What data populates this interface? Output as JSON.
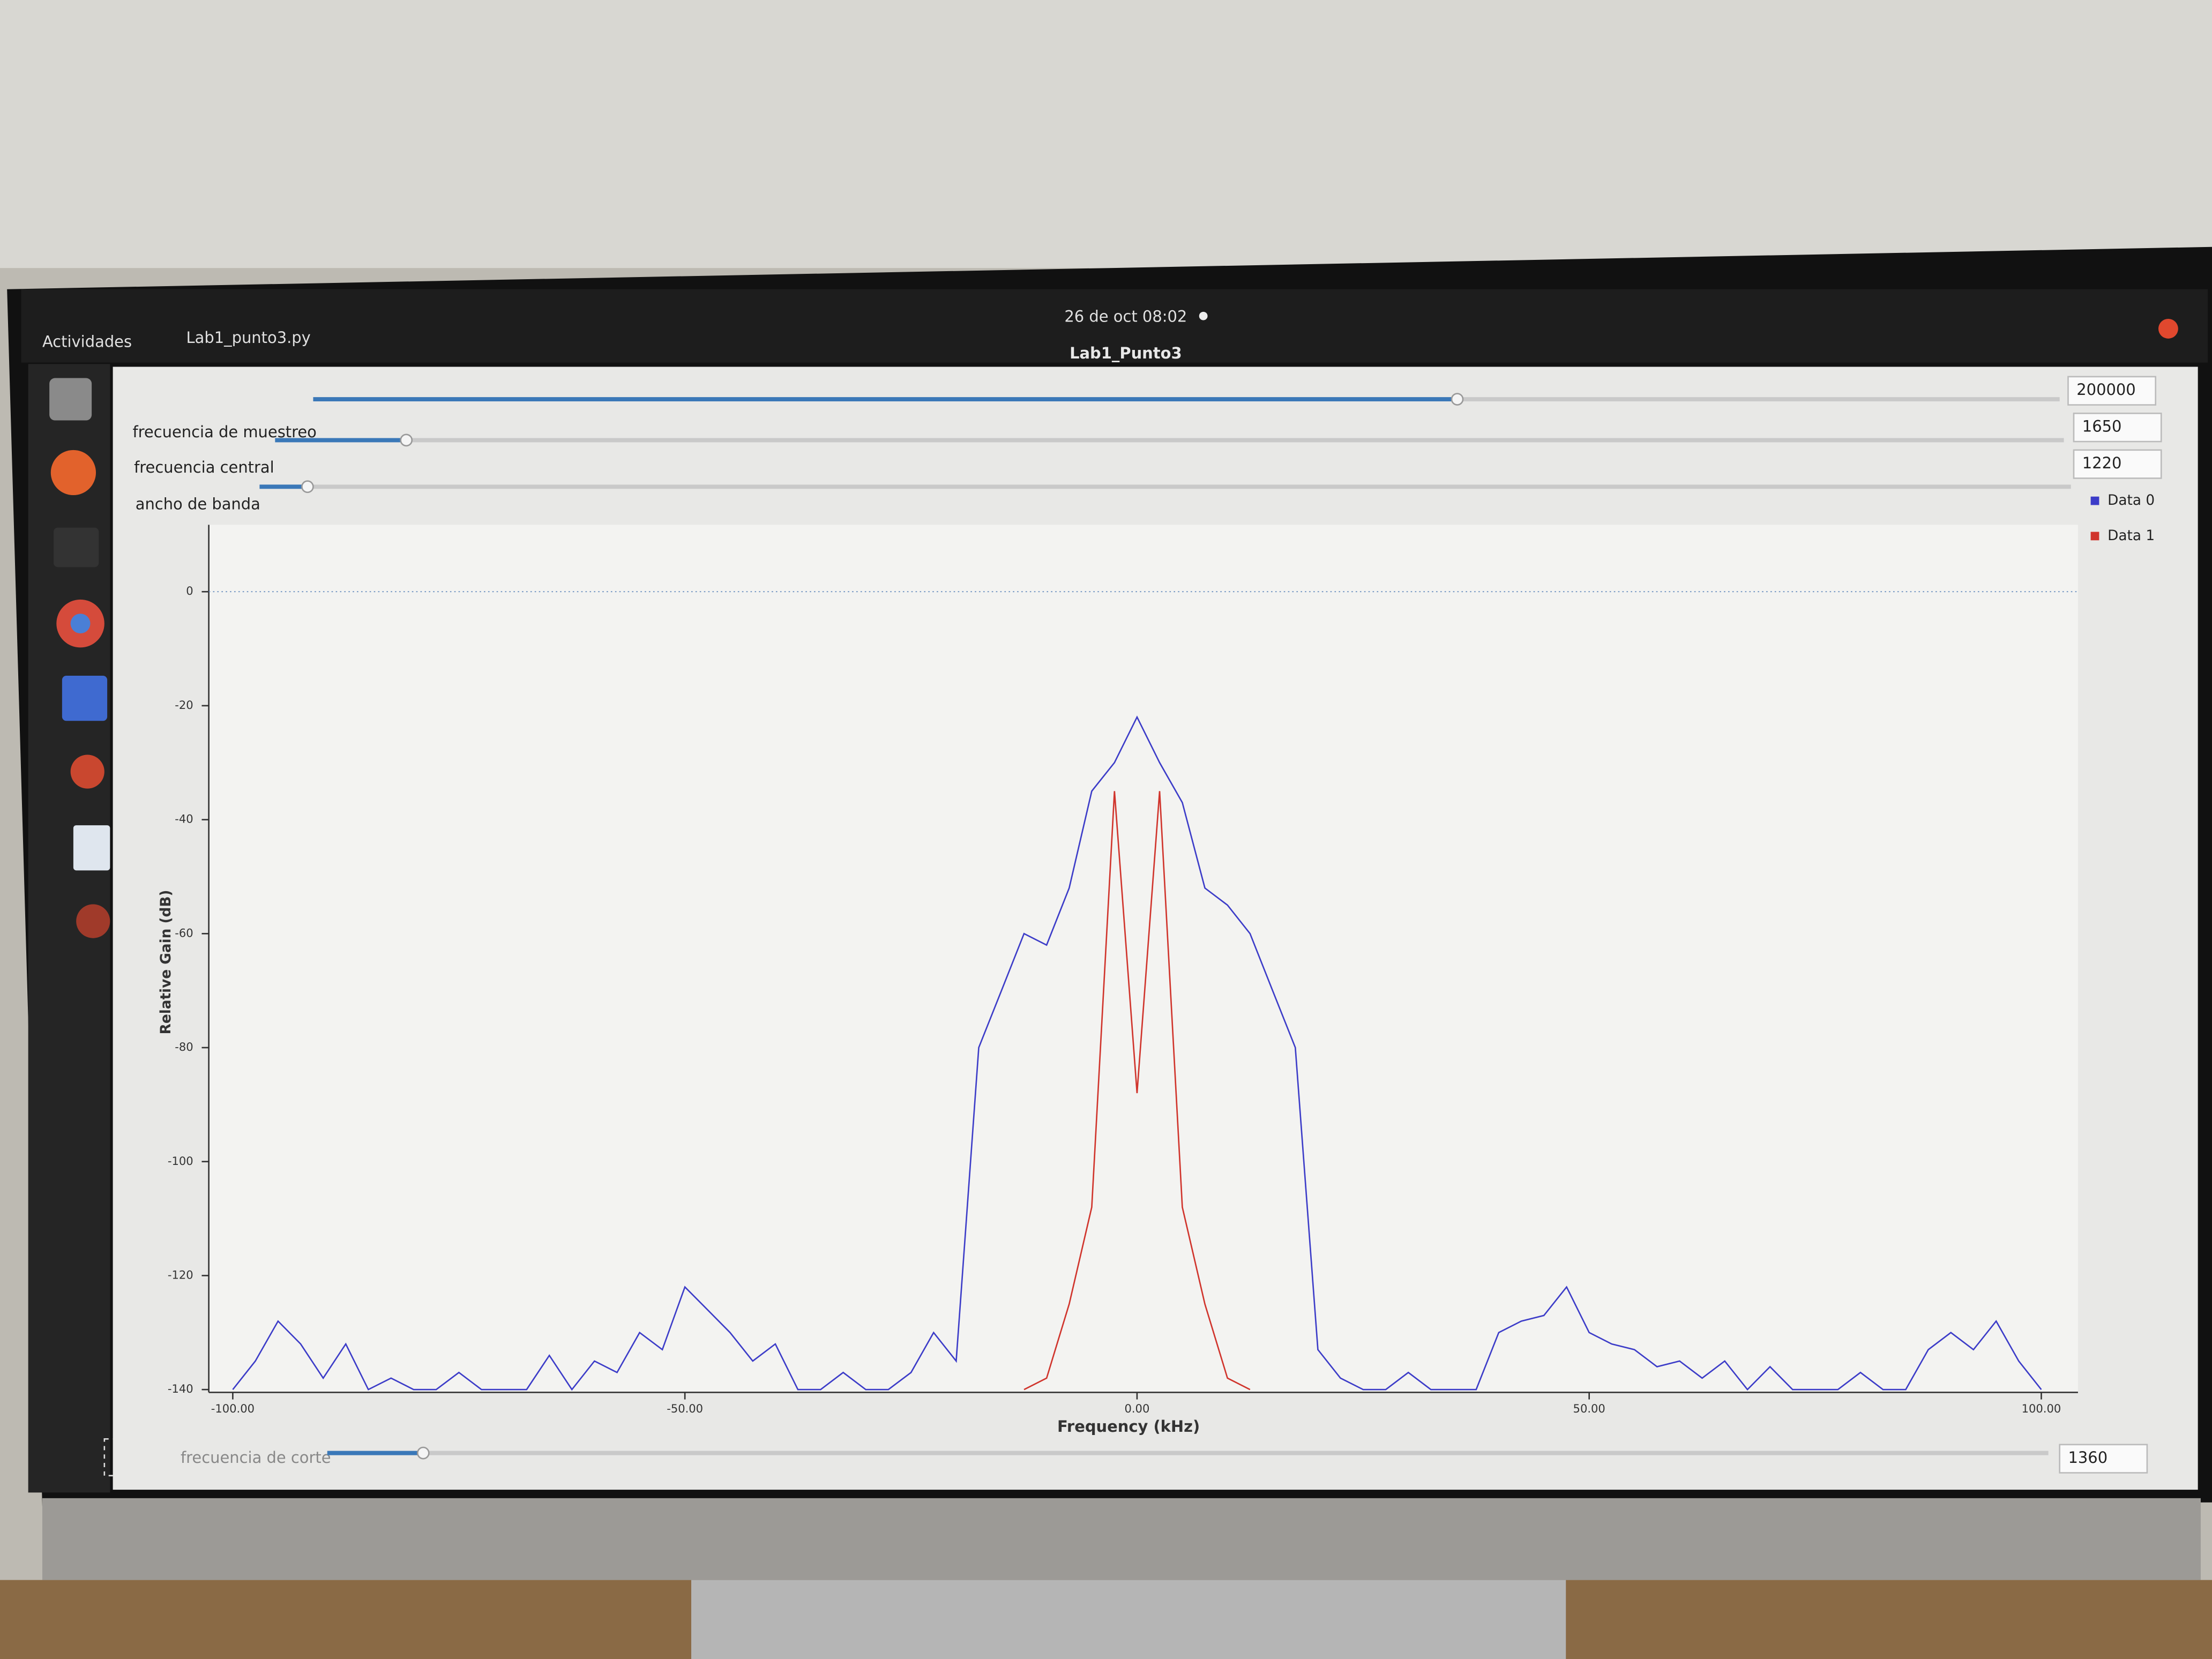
{
  "topbar": {
    "activities": "Actividades",
    "app_menu": "Lab1_punto3.py",
    "clock": "26 de oct  08:02"
  },
  "window": {
    "title": "Lab1_Punto3"
  },
  "controls": [
    {
      "label": "frecuencia de muestreo",
      "value": "200000"
    },
    {
      "label": "frecuencia central",
      "value": "1650"
    },
    {
      "label": "ancho de banda",
      "value": "1220"
    },
    {
      "label": "frecuencia de corte",
      "value": "1360"
    }
  ],
  "chart_data": {
    "type": "line",
    "xlabel": "Frequency (kHz)",
    "ylabel": "Relative Gain (dB)",
    "x": [
      -100,
      -97.5,
      -95,
      -92.5,
      -90,
      -87.5,
      -85,
      -82.5,
      -80,
      -77.5,
      -75,
      -72.5,
      -70,
      -67.5,
      -65,
      -62.5,
      -60,
      -57.5,
      -55,
      -52.5,
      -50,
      -47.5,
      -45,
      -42.5,
      -40,
      -37.5,
      -35,
      -32.5,
      -30,
      -27.5,
      -25,
      -22.5,
      -20,
      -17.5,
      -15,
      -12.5,
      -10,
      -7.5,
      -5,
      -2.5,
      0,
      2.5,
      5,
      7.5,
      10,
      12.5,
      15,
      17.5,
      20,
      22.5,
      25,
      27.5,
      30,
      32.5,
      35,
      37.5,
      40,
      42.5,
      45,
      47.5,
      50,
      52.5,
      55,
      57.5,
      60,
      62.5,
      65,
      67.5,
      70,
      72.5,
      75,
      77.5,
      80,
      82.5,
      85,
      87.5,
      90,
      92.5,
      95,
      97.5,
      100
    ],
    "series": [
      {
        "name": "Data 0",
        "color": "#3c3cc8",
        "values": [
          -140,
          -135,
          -128,
          -132,
          -138,
          -132,
          -140,
          -138,
          -140,
          -140,
          -137,
          -140,
          -140,
          -140,
          -134,
          -140,
          -135,
          -137,
          -130,
          -133,
          -122,
          -126,
          -130,
          -135,
          -132,
          -140,
          -140,
          -137,
          -140,
          -140,
          -137,
          -130,
          -135,
          -80,
          -70,
          -60,
          -62,
          -52,
          -35,
          -30,
          -22,
          -30,
          -37,
          -52,
          -55,
          -60,
          -70,
          -80,
          -133,
          -138,
          -140,
          -140,
          -137,
          -140,
          -140,
          -140,
          -130,
          -128,
          -127,
          -122,
          -130,
          -132,
          -133,
          -136,
          -135,
          -138,
          -135,
          -140,
          -136,
          -140,
          -140,
          -140,
          -137,
          -140,
          -140,
          -133,
          -130,
          -133,
          -128,
          -135,
          -140
        ]
      },
      {
        "name": "Data 1",
        "color": "#d0342c",
        "values": [
          null,
          null,
          null,
          null,
          null,
          null,
          null,
          null,
          null,
          null,
          null,
          null,
          null,
          null,
          null,
          null,
          null,
          null,
          null,
          null,
          null,
          null,
          null,
          null,
          null,
          null,
          null,
          null,
          null,
          null,
          null,
          null,
          null,
          null,
          null,
          -140,
          -138,
          -125,
          -108,
          -35,
          -88,
          -35,
          -108,
          -125,
          -138,
          -140,
          null,
          null,
          null,
          null,
          null,
          null,
          null,
          null,
          null,
          null,
          null,
          null,
          null,
          null,
          null,
          null,
          null,
          null,
          null,
          null,
          null,
          null,
          null,
          null,
          null,
          null,
          null,
          null,
          null,
          null,
          null,
          null,
          null,
          null,
          null
        ]
      }
    ],
    "xlim": [
      -100,
      100
    ],
    "ylim": [
      -140,
      11
    ],
    "xticks": [
      {
        "value": -100,
        "label": "-100.00"
      },
      {
        "value": -50,
        "label": "-50.00"
      },
      {
        "value": 0,
        "label": "0.00"
      },
      {
        "value": 50,
        "label": "50.00"
      },
      {
        "value": 100,
        "label": "100.00"
      }
    ],
    "yticks": [
      0,
      -20,
      -40,
      -60,
      -80,
      -100,
      -120,
      -140
    ],
    "legend": "right"
  }
}
